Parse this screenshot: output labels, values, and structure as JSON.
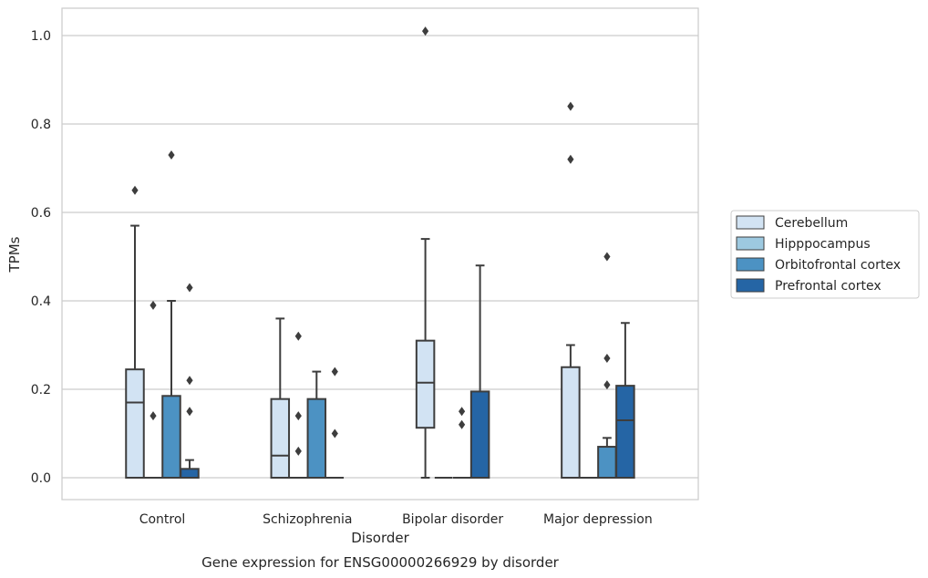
{
  "chart_data": {
    "type": "box",
    "title": "Gene expression for ENSG00000266929 by disorder",
    "xlabel": "Disorder",
    "ylabel": "TPMs",
    "ylim": [
      -0.05,
      1.06
    ],
    "yticks": [
      0.0,
      0.2,
      0.4,
      0.6,
      0.8,
      1.0
    ],
    "categories": [
      "Control",
      "Schizophrenia",
      "Bipolar disorder",
      "Major depression"
    ],
    "grid": "horizontal",
    "legend_position": "right",
    "series": [
      {
        "name": "Cerebellum",
        "color": "#d2e3f3",
        "boxes": [
          {
            "whislo": 0.0,
            "q1": 0.0,
            "med": 0.17,
            "q3": 0.245,
            "whishi": 0.57,
            "fliers": [
              0.65
            ]
          },
          {
            "whislo": 0.0,
            "q1": 0.0,
            "med": 0.05,
            "q3": 0.178,
            "whishi": 0.36,
            "fliers": []
          },
          {
            "whislo": 0.0,
            "q1": 0.113,
            "med": 0.215,
            "q3": 0.31,
            "whishi": 0.54,
            "fliers": [
              1.01
            ]
          },
          {
            "whislo": 0.0,
            "q1": 0.0,
            "med": 0.0,
            "q3": 0.25,
            "whishi": 0.3,
            "fliers": [
              0.72,
              0.84
            ]
          }
        ]
      },
      {
        "name": "Hipppocampus",
        "color": "#9dc9e0",
        "boxes": [
          {
            "whislo": 0.0,
            "q1": 0.0,
            "med": 0.0,
            "q3": 0.0,
            "whishi": 0.0,
            "fliers": [
              0.14,
              0.39
            ]
          },
          {
            "whislo": 0.0,
            "q1": 0.0,
            "med": 0.0,
            "q3": 0.0,
            "whishi": 0.0,
            "fliers": [
              0.06,
              0.14,
              0.32
            ]
          },
          {
            "whislo": 0.0,
            "q1": 0.0,
            "med": 0.0,
            "q3": 0.0,
            "whishi": 0.0,
            "fliers": []
          },
          {
            "whislo": 0.0,
            "q1": 0.0,
            "med": 0.0,
            "q3": 0.0,
            "whishi": 0.0,
            "fliers": []
          }
        ]
      },
      {
        "name": "Orbitofrontal cortex",
        "color": "#4c92c3",
        "boxes": [
          {
            "whislo": 0.0,
            "q1": 0.0,
            "med": 0.0,
            "q3": 0.185,
            "whishi": 0.4,
            "fliers": [
              0.73
            ]
          },
          {
            "whislo": 0.0,
            "q1": 0.0,
            "med": 0.0,
            "q3": 0.178,
            "whishi": 0.24,
            "fliers": []
          },
          {
            "whislo": 0.0,
            "q1": 0.0,
            "med": 0.0,
            "q3": 0.0,
            "whishi": 0.0,
            "fliers": [
              0.12,
              0.15
            ]
          },
          {
            "whislo": 0.0,
            "q1": 0.0,
            "med": 0.0,
            "q3": 0.07,
            "whishi": 0.09,
            "fliers": [
              0.21,
              0.27,
              0.5
            ]
          }
        ]
      },
      {
        "name": "Prefrontal cortex",
        "color": "#2565a5",
        "boxes": [
          {
            "whislo": 0.0,
            "q1": 0.0,
            "med": 0.0,
            "q3": 0.02,
            "whishi": 0.04,
            "fliers": [
              0.15,
              0.22,
              0.43
            ]
          },
          {
            "whislo": 0.0,
            "q1": 0.0,
            "med": 0.0,
            "q3": 0.0,
            "whishi": 0.0,
            "fliers": [
              0.1,
              0.24
            ]
          },
          {
            "whislo": 0.0,
            "q1": 0.0,
            "med": 0.0,
            "q3": 0.195,
            "whishi": 0.48,
            "fliers": []
          },
          {
            "whislo": 0.0,
            "q1": 0.0,
            "med": 0.13,
            "q3": 0.208,
            "whishi": 0.35,
            "fliers": []
          }
        ]
      }
    ]
  }
}
